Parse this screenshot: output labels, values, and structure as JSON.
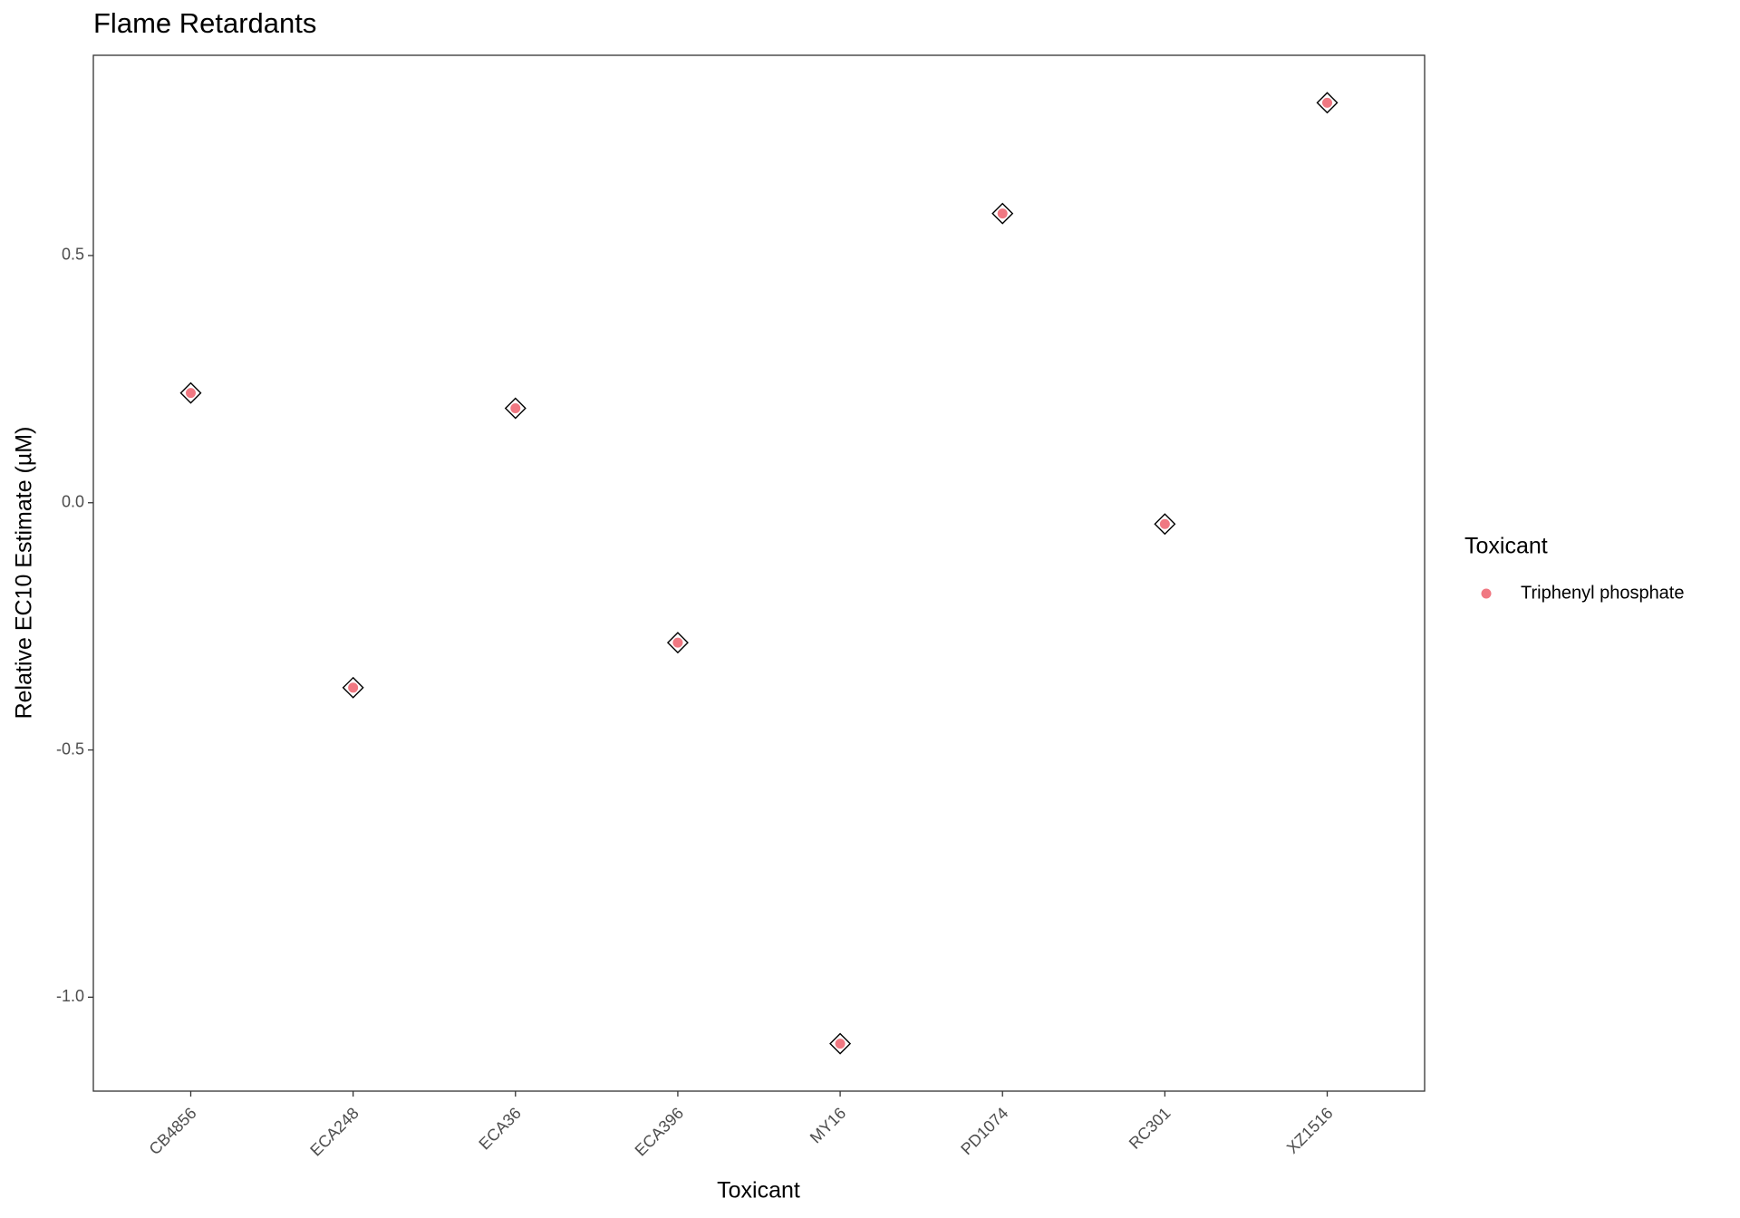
{
  "chart_data": {
    "type": "scatter",
    "title": "Flame Retardants",
    "x_label": "Toxicant",
    "y_label": "Relative EC10 Estimate (µM)",
    "categories": [
      "CB4856",
      "ECA248",
      "ECA36",
      "ECA396",
      "MY16",
      "PD1074",
      "RC301",
      "XZ1516"
    ],
    "series": [
      {
        "name": "Triphenyl phosphate",
        "color": "#f07882",
        "values": [
          0.222,
          -0.374,
          0.191,
          -0.283,
          -1.094,
          0.585,
          -0.043,
          0.809
        ]
      }
    ],
    "legend_title": "Toxicant",
    "ylim": [
      -1.19,
      0.905
    ],
    "yticks": [
      {
        "value": -1,
        "label": "-1.0"
      },
      -0.5,
      {
        "value": 0,
        "label": "0.0"
      },
      0.5
    ],
    "grid": false,
    "legend": "right"
  }
}
